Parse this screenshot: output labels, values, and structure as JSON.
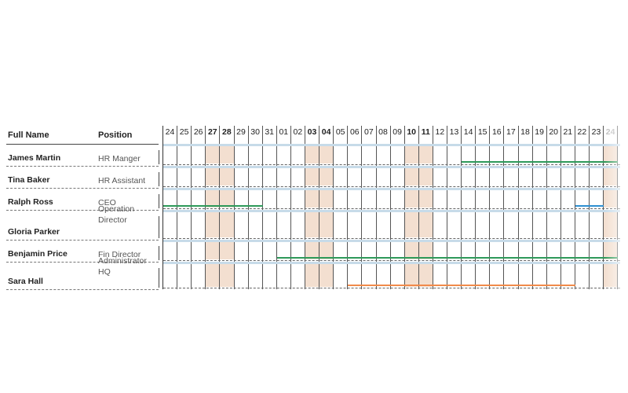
{
  "headers": {
    "full_name": "Full Name",
    "position": "Position"
  },
  "days": [
    "24",
    "25",
    "26",
    "27",
    "28",
    "29",
    "30",
    "31",
    "01",
    "02",
    "03",
    "04",
    "05",
    "06",
    "07",
    "08",
    "09",
    "10",
    "11",
    "12",
    "13",
    "14",
    "15",
    "16",
    "17",
    "18",
    "19",
    "20",
    "21",
    "22",
    "23",
    "24"
  ],
  "weekend_days_index": [
    3,
    4,
    10,
    11,
    17,
    18,
    31
  ],
  "employees": [
    {
      "name": "James Martin",
      "position": "HR Manger",
      "bars": [
        {
          "from": 21,
          "to": 31,
          "color": "#2e9a5a"
        }
      ]
    },
    {
      "name": "Tina Baker",
      "position": "HR Assistant",
      "bars": []
    },
    {
      "name": "Ralph Ross",
      "position": "CEO",
      "bars": [
        {
          "from": 0,
          "to": 6,
          "color": "#2e9a5a"
        },
        {
          "from": 29,
          "to": 30,
          "color": "#2e8fd0"
        }
      ]
    },
    {
      "name": "Gloria Parker",
      "position": "Operation Director",
      "bars": []
    },
    {
      "name": "Benjamin Price",
      "position": "Fin Director",
      "bars": [
        {
          "from": 8,
          "to": 31,
          "color": "#2e9a5a"
        }
      ]
    },
    {
      "name": "Sara Hall",
      "position": "Administrator HQ",
      "bars": [
        {
          "from": 13,
          "to": 28,
          "color": "#f08a4b"
        }
      ]
    }
  ]
}
